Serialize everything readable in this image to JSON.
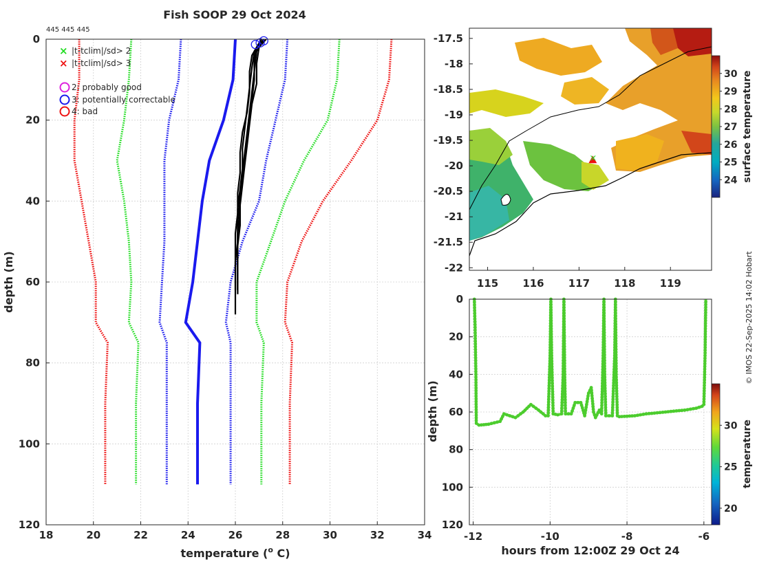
{
  "header": {
    "title": "Fish SOOP 29 Oct 2024",
    "platform_ids": "445 445 445",
    "credit": "© IMOS 22-Sep-2025 14:02 Hobart"
  },
  "legend": {
    "items": [
      {
        "label": "|t-tclim|/sd> 2",
        "marker": "x",
        "color": "#22dd22"
      },
      {
        "label": "|t-tclim|/sd> 3",
        "marker": "x",
        "color": "#ee1111"
      },
      {
        "label": "2: probably good",
        "marker": "o",
        "color": "#dd22dd"
      },
      {
        "label": "3: potentially correctable",
        "marker": "o",
        "color": "#1a1aee"
      },
      {
        "label": "4: bad",
        "marker": "o",
        "color": "#ee1111"
      }
    ]
  },
  "chart_data": [
    {
      "id": "profile",
      "type": "line",
      "xlabel": "temperature (",
      "xlabel_sup": "o",
      "xlabel_tail": " C)",
      "ylabel": "depth (m)",
      "xlim": [
        18,
        34
      ],
      "ylim": [
        0,
        120
      ],
      "y_reversed": true,
      "xticks": [
        18,
        20,
        22,
        24,
        26,
        28,
        30,
        32,
        34
      ],
      "yticks": [
        0,
        20,
        40,
        60,
        80,
        100,
        120
      ],
      "grid": true,
      "series": [
        {
          "name": "clim-3sd",
          "color": "#ee1111",
          "style": "dotted",
          "points": [
            [
              19.4,
              0
            ],
            [
              19.4,
              10
            ],
            [
              19.2,
              20
            ],
            [
              19.2,
              30
            ],
            [
              19.5,
              40
            ],
            [
              19.8,
              50
            ],
            [
              20.1,
              60
            ],
            [
              20.1,
              70
            ],
            [
              20.6,
              75
            ],
            [
              20.5,
              90
            ],
            [
              20.5,
              110
            ]
          ]
        },
        {
          "name": "clim-2sd",
          "color": "#22dd22",
          "style": "dotted",
          "points": [
            [
              21.6,
              0
            ],
            [
              21.5,
              10
            ],
            [
              21.3,
              20
            ],
            [
              21.0,
              30
            ],
            [
              21.3,
              40
            ],
            [
              21.5,
              50
            ],
            [
              21.6,
              60
            ],
            [
              21.5,
              70
            ],
            [
              21.9,
              75
            ],
            [
              21.8,
              90
            ],
            [
              21.8,
              110
            ]
          ]
        },
        {
          "name": "clim-1sd",
          "color": "#1a1aee",
          "style": "dotted",
          "points": [
            [
              23.7,
              0
            ],
            [
              23.6,
              10
            ],
            [
              23.2,
              20
            ],
            [
              23.0,
              30
            ],
            [
              23.0,
              40
            ],
            [
              23.0,
              50
            ],
            [
              22.9,
              60
            ],
            [
              22.8,
              70
            ],
            [
              23.1,
              75
            ],
            [
              23.1,
              90
            ],
            [
              23.1,
              110
            ]
          ]
        },
        {
          "name": "climatology",
          "color": "#1a1aee",
          "style": "solid",
          "points": [
            [
              26.0,
              0
            ],
            [
              25.9,
              10
            ],
            [
              25.5,
              20
            ],
            [
              24.9,
              30
            ],
            [
              24.6,
              40
            ],
            [
              24.4,
              50
            ],
            [
              24.2,
              60
            ],
            [
              23.9,
              70
            ],
            [
              24.5,
              75
            ],
            [
              24.4,
              90
            ],
            [
              24.4,
              110
            ]
          ]
        },
        {
          "name": "clim+1sd",
          "color": "#1a1aee",
          "style": "dotted",
          "points": [
            [
              28.2,
              0
            ],
            [
              28.1,
              10
            ],
            [
              27.7,
              20
            ],
            [
              27.3,
              30
            ],
            [
              27.0,
              40
            ],
            [
              26.3,
              50
            ],
            [
              25.8,
              60
            ],
            [
              25.6,
              70
            ],
            [
              25.8,
              75
            ],
            [
              25.8,
              90
            ],
            [
              25.8,
              110
            ]
          ]
        },
        {
          "name": "clim+2sd",
          "color": "#22dd22",
          "style": "dotted",
          "points": [
            [
              30.4,
              0
            ],
            [
              30.3,
              10
            ],
            [
              29.9,
              20
            ],
            [
              28.9,
              30
            ],
            [
              28.1,
              40
            ],
            [
              27.5,
              50
            ],
            [
              26.9,
              60
            ],
            [
              26.9,
              70
            ],
            [
              27.2,
              75
            ],
            [
              27.1,
              90
            ],
            [
              27.1,
              110
            ]
          ]
        },
        {
          "name": "clim+3sd",
          "color": "#ee1111",
          "style": "dotted",
          "points": [
            [
              32.6,
              0
            ],
            [
              32.5,
              10
            ],
            [
              32.0,
              20
            ],
            [
              30.9,
              30
            ],
            [
              29.7,
              40
            ],
            [
              28.8,
              50
            ],
            [
              28.2,
              60
            ],
            [
              28.1,
              70
            ],
            [
              28.4,
              75
            ],
            [
              28.3,
              90
            ],
            [
              28.3,
              110
            ]
          ]
        },
        {
          "name": "cast-1",
          "color": "#000000",
          "style": "solid",
          "points": [
            [
              27.2,
              0
            ],
            [
              26.9,
              2
            ],
            [
              26.8,
              5
            ],
            [
              26.8,
              10
            ],
            [
              26.7,
              15
            ],
            [
              26.6,
              20
            ],
            [
              26.5,
              25
            ],
            [
              26.4,
              30
            ],
            [
              26.3,
              35
            ],
            [
              26.2,
              40
            ],
            [
              26.1,
              45
            ],
            [
              26.1,
              50
            ],
            [
              26.0,
              55
            ],
            [
              26.0,
              60
            ],
            [
              26.0,
              65
            ],
            [
              26.0,
              68
            ]
          ]
        },
        {
          "name": "cast-2",
          "color": "#000000",
          "style": "solid",
          "points": [
            [
              27.1,
              0
            ],
            [
              26.8,
              3
            ],
            [
              26.7,
              7
            ],
            [
              26.6,
              12
            ],
            [
              26.5,
              17
            ],
            [
              26.4,
              22
            ],
            [
              26.3,
              27
            ],
            [
              26.3,
              32
            ],
            [
              26.2,
              37
            ],
            [
              26.1,
              42
            ],
            [
              26.1,
              47
            ],
            [
              26.1,
              52
            ],
            [
              26.1,
              57
            ],
            [
              26.1,
              62
            ]
          ]
        },
        {
          "name": "cast-3",
          "color": "#000000",
          "style": "solid",
          "points": [
            [
              27.3,
              0
            ],
            [
              27.0,
              2
            ],
            [
              26.9,
              6
            ],
            [
              26.9,
              11
            ],
            [
              26.7,
              16
            ],
            [
              26.6,
              21
            ],
            [
              26.5,
              26
            ],
            [
              26.4,
              31
            ],
            [
              26.3,
              36
            ],
            [
              26.2,
              41
            ],
            [
              26.2,
              46
            ],
            [
              26.1,
              51
            ],
            [
              26.1,
              56
            ],
            [
              26.1,
              61
            ],
            [
              26.1,
              63
            ]
          ]
        },
        {
          "name": "cast-4",
          "color": "#000000",
          "style": "solid",
          "points": [
            [
              27.0,
              1
            ],
            [
              26.7,
              4
            ],
            [
              26.6,
              8
            ],
            [
              26.6,
              13
            ],
            [
              26.5,
              18
            ],
            [
              26.3,
              23
            ],
            [
              26.2,
              28
            ],
            [
              26.2,
              33
            ],
            [
              26.1,
              38
            ],
            [
              26.1,
              43
            ],
            [
              26.0,
              48
            ],
            [
              26.0,
              53
            ],
            [
              26.0,
              58
            ],
            [
              26.0,
              62
            ]
          ]
        },
        {
          "name": "cast-5",
          "color": "#000000",
          "style": "solid",
          "points": [
            [
              27.2,
              0
            ],
            [
              26.9,
              3
            ],
            [
              26.8,
              8
            ],
            [
              26.7,
              13
            ],
            [
              26.6,
              18
            ],
            [
              26.5,
              23
            ],
            [
              26.4,
              28
            ],
            [
              26.3,
              33
            ],
            [
              26.2,
              38
            ],
            [
              26.2,
              43
            ],
            [
              26.1,
              48
            ],
            [
              26.1,
              53
            ],
            [
              26.1,
              58
            ],
            [
              26.1,
              62
            ]
          ]
        }
      ],
      "flagged_points": [
        {
          "x": 26.85,
          "y": 1.3,
          "flag": 3
        },
        {
          "x": 27.05,
          "y": 0.9,
          "flag": 3
        },
        {
          "x": 27.2,
          "y": 0.4,
          "flag": 3
        }
      ]
    },
    {
      "id": "sst-map",
      "type": "heatmap",
      "xlim": [
        114.6,
        119.9
      ],
      "ylim": [
        -22.05,
        -17.3
      ],
      "xticks": [
        115,
        116,
        117,
        118,
        119
      ],
      "yticks": [
        -17.5,
        -18,
        -18.5,
        -19,
        -19.5,
        -20,
        -20.5,
        -21,
        -21.5,
        -22
      ],
      "colorbar_label": "surface temperature",
      "colorbar_range": [
        23,
        31
      ],
      "colorbar_ticks": [
        24,
        25,
        26,
        27,
        28,
        29,
        30
      ],
      "cast_location": [
        117.3,
        -19.88
      ]
    },
    {
      "id": "time-depth",
      "type": "scatter",
      "xlabel": "hours from 12:00Z 29 Oct 24",
      "ylabel": "depth (m)",
      "xlim": [
        -12.1,
        -5.8
      ],
      "ylim": [
        0,
        120
      ],
      "y_reversed": true,
      "xticks": [
        -12,
        -10,
        -8,
        -6
      ],
      "yticks": [
        0,
        20,
        40,
        60,
        80,
        100,
        120
      ],
      "colorbar_label": "temperature",
      "colorbar_range": [
        18,
        35
      ],
      "colorbar_ticks": [
        20,
        25,
        30
      ],
      "track": [
        [
          -11.97,
          0
        ],
        [
          -11.95,
          15
        ],
        [
          -11.93,
          40
        ],
        [
          -11.92,
          66
        ],
        [
          -11.85,
          67
        ],
        [
          -11.6,
          66.5
        ],
        [
          -11.3,
          65
        ],
        [
          -11.2,
          61
        ],
        [
          -10.9,
          63
        ],
        [
          -10.7,
          60
        ],
        [
          -10.5,
          56
        ],
        [
          -10.3,
          59
        ],
        [
          -10.12,
          62
        ],
        [
          -10.05,
          62
        ],
        [
          -10.0,
          30
        ],
        [
          -9.98,
          0
        ],
        [
          -9.96,
          30
        ],
        [
          -9.92,
          61
        ],
        [
          -9.8,
          61.5
        ],
        [
          -9.7,
          61
        ],
        [
          -9.66,
          40
        ],
        [
          -9.64,
          0
        ],
        [
          -9.62,
          40
        ],
        [
          -9.6,
          61
        ],
        [
          -9.45,
          61
        ],
        [
          -9.35,
          55
        ],
        [
          -9.2,
          55
        ],
        [
          -9.1,
          62
        ],
        [
          -9.0,
          50
        ],
        [
          -8.93,
          47
        ],
        [
          -8.87,
          60
        ],
        [
          -8.82,
          63
        ],
        [
          -8.72,
          59
        ],
        [
          -8.66,
          61
        ],
        [
          -8.62,
          30
        ],
        [
          -8.6,
          0
        ],
        [
          -8.58,
          40
        ],
        [
          -8.55,
          62
        ],
        [
          -8.38,
          62
        ],
        [
          -8.32,
          30
        ],
        [
          -8.3,
          0
        ],
        [
          -8.28,
          40
        ],
        [
          -8.25,
          62
        ],
        [
          -8.2,
          62.5
        ],
        [
          -7.8,
          62
        ],
        [
          -7.5,
          61
        ],
        [
          -7.0,
          60
        ],
        [
          -6.5,
          59
        ],
        [
          -6.2,
          58
        ],
        [
          -6.05,
          57
        ],
        [
          -6.0,
          56
        ],
        [
          -5.97,
          30
        ],
        [
          -5.95,
          0
        ]
      ]
    }
  ]
}
